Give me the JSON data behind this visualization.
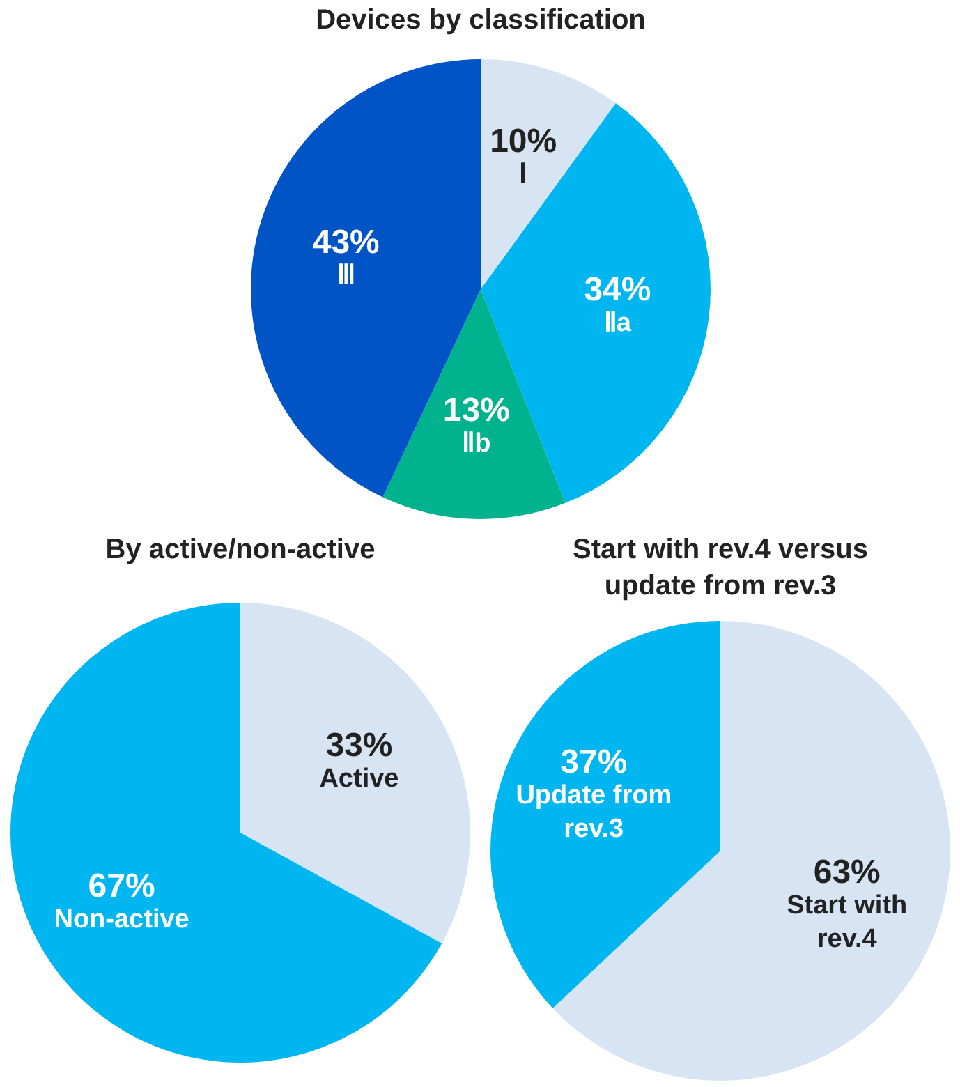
{
  "chart_data": [
    {
      "type": "pie",
      "title": "Devices by classification",
      "categories": [
        "Ⅰ",
        "Ⅱa",
        "Ⅱb",
        "Ⅲ"
      ],
      "values": [
        10,
        34,
        13,
        43
      ],
      "colors": [
        "#d6e4f3",
        "#00b6f0",
        "#00b38e",
        "#0054c6"
      ],
      "value_labels": [
        "10%",
        "34%",
        "13%",
        "43%"
      ]
    },
    {
      "type": "pie",
      "title": "By active/non-active",
      "categories": [
        "Active",
        "Non-active"
      ],
      "values": [
        33,
        67
      ],
      "colors": [
        "#d6e4f3",
        "#00b6f0"
      ],
      "value_labels": [
        "33%",
        "67%"
      ]
    },
    {
      "type": "pie",
      "title": "Start with rev.4 versus update from rev.3",
      "categories": [
        "Start with rev.4",
        "Update from rev.3"
      ],
      "values": [
        63,
        37
      ],
      "colors": [
        "#d6e4f3",
        "#00b6f0"
      ],
      "value_labels": [
        "63%",
        "37%"
      ]
    }
  ]
}
